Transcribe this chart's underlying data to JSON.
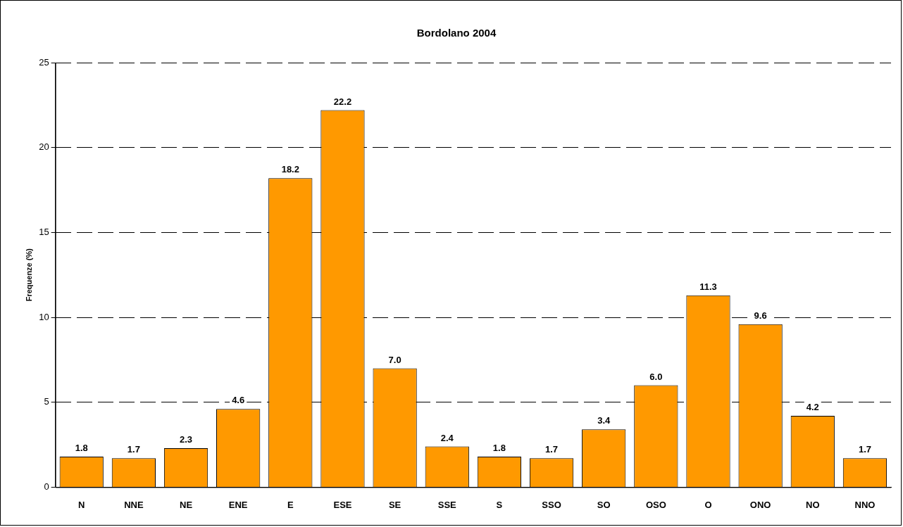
{
  "chart_data": {
    "type": "bar",
    "title": "Bordolano 2004",
    "ylabel": "Frequenze (%)",
    "categories": [
      "N",
      "NNE",
      "NE",
      "ENE",
      "E",
      "ESE",
      "SE",
      "SSE",
      "S",
      "SSO",
      "SO",
      "OSO",
      "O",
      "ONO",
      "NO",
      "NNO"
    ],
    "values": [
      1.8,
      1.7,
      2.3,
      4.6,
      18.2,
      22.2,
      7.0,
      2.4,
      1.8,
      1.7,
      3.4,
      6.0,
      11.3,
      9.6,
      4.2,
      1.7
    ],
    "value_labels": [
      "1.8",
      "1.7",
      "2.3",
      "4.6",
      "18.2",
      "22.2",
      "7.0",
      "2.4",
      "1.8",
      "1.7",
      "3.4",
      "6.0",
      "11.3",
      "9.6",
      "4.2",
      "1.7"
    ],
    "color": "#ff9900",
    "ylim": [
      0,
      25
    ],
    "yticks": [
      0,
      5,
      10,
      15,
      20,
      25
    ],
    "grid": "y",
    "legend": false
  }
}
